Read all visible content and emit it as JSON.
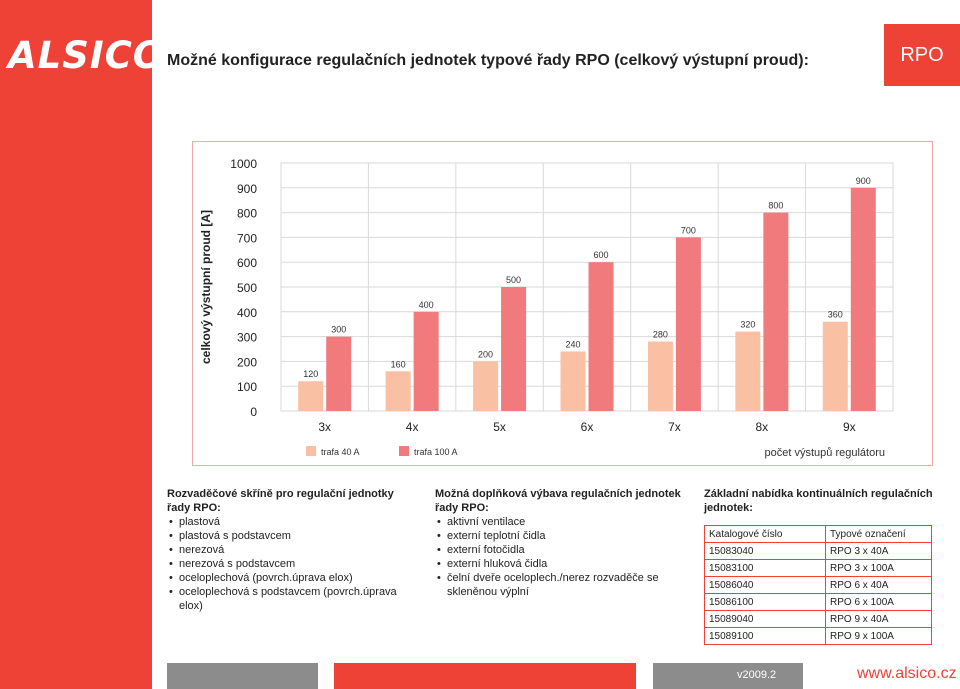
{
  "brand": {
    "logo_text": "ALSICO",
    "accent": "#ee4237",
    "grey": "#8c8c8c"
  },
  "header": {
    "title": "Možné konfigurace regulačních jednotek typové řady RPO (celkový výstupní proud):",
    "badge": "RPO"
  },
  "chart_data": {
    "type": "bar",
    "ylabel": "celkový výstupní proud [A]",
    "xlabel": "počet výstupů regulátoru",
    "ylim": [
      0,
      1000
    ],
    "yticks": [
      0,
      100,
      200,
      300,
      400,
      500,
      600,
      700,
      800,
      900,
      1000
    ],
    "grid": true,
    "legend_position": "bottom-left",
    "categories": [
      "3x",
      "4x",
      "5x",
      "6x",
      "7x",
      "8x",
      "9x"
    ],
    "series": [
      {
        "name": "trafa 40 A",
        "color": "#f9c0a3",
        "values": [
          120,
          160,
          200,
          240,
          280,
          320,
          360
        ]
      },
      {
        "name": "trafa 100 A",
        "color": "#f07a7c",
        "values": [
          300,
          400,
          500,
          600,
          700,
          800,
          900
        ]
      }
    ]
  },
  "sections": {
    "enclosures": {
      "title": "Rozvaděčové skříně pro regulační jednotky řady RPO:",
      "items": [
        "plastová",
        "plastová s podstavcem",
        "nerezová",
        "nerezová s podstavcem",
        "oceloplechová (povrch.úprava elox)",
        "oceloplechová s podstavcem (povrch.úprava elox)"
      ]
    },
    "accessories": {
      "title": "Možná doplňková výbava regulačních jednotek řady RPO:",
      "items": [
        "aktivní ventilace",
        "externí teplotní čidla",
        "externí fotočidla",
        "externí hluková čidla",
        "čelní dveře oceloplech./nerez rozvaděče se skleněnou výplní"
      ]
    },
    "offer": {
      "title": "Základní nabídka kontinuálních regulačních jednotek:",
      "table": {
        "headers": [
          "Katalogové číslo",
          "Typové označení"
        ],
        "rows": [
          [
            "15083040",
            "RPO 3 x 40A"
          ],
          [
            "15083100",
            "RPO 3 x 100A"
          ],
          [
            "15086040",
            "RPO 6 x 40A"
          ],
          [
            "15086100",
            "RPO 6 x 100A"
          ],
          [
            "15089040",
            "RPO 9 x 40A"
          ],
          [
            "15089100",
            "RPO 9 x 100A"
          ]
        ]
      }
    }
  },
  "footer": {
    "version": "v2009.2",
    "website": "www.alsico.cz"
  }
}
